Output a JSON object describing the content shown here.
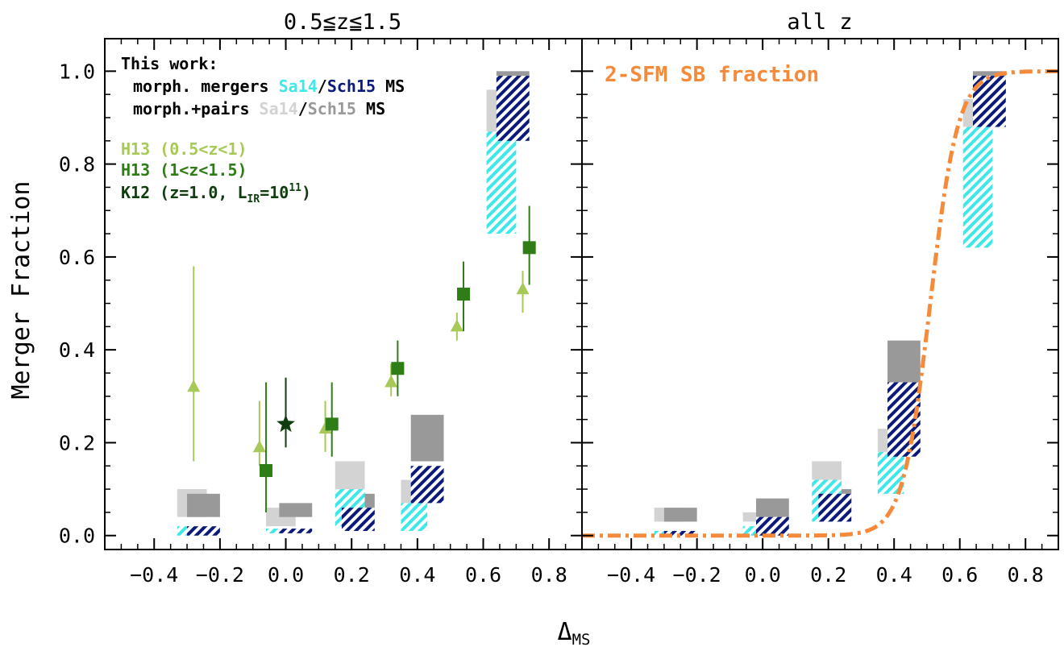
{
  "figure": {
    "ylabel": "Merger Fraction",
    "xlabel_main": "Δ",
    "xlabel_sub": "MS",
    "x_ticks": [
      -0.4,
      -0.2,
      0.0,
      0.2,
      0.4,
      0.6,
      0.8
    ],
    "y_ticks": [
      0.0,
      0.2,
      0.4,
      0.6,
      0.8,
      1.0
    ],
    "colors": {
      "sa14_morph": "#3ee8e8",
      "sch15_morph": "#0b1a78",
      "sa14_pairs": "#d3d3d3",
      "sch15_pairs": "#999999",
      "h13_low": "#a7c957",
      "h13_high": "#2e7d16",
      "k12": "#0f3d0f",
      "sfm_curve": "#f58a3a"
    }
  },
  "legend": {
    "title": "This work:",
    "row1": {
      "prefix": "morph. mergers ",
      "sa14": "Sa14",
      "slash": "/",
      "sch15": "Sch15",
      "suffix": " MS"
    },
    "row2": {
      "prefix": "morph.+pairs ",
      "sa14": "Sa14",
      "slash": "/",
      "sch15": "Sch15",
      "suffix": " MS"
    },
    "h13_low": "H13 (0.5<z<1)",
    "h13_high": "H13 (1<z<1.5)",
    "k12": {
      "text": "K12 (z=1.0, L",
      "sub": "IR",
      "mid": "=10",
      "sup": "11",
      "end": ")"
    },
    "sfm": "2-SFM SB fraction"
  },
  "chart_data": [
    {
      "type": "bar",
      "title": "0.5≦z≦1.5",
      "xlim": [
        -0.55,
        0.9
      ],
      "ylim": [
        -0.03,
        1.07
      ],
      "sa14_pairs": [
        {
          "x0": -0.33,
          "x1": -0.24,
          "y0": 0.04,
          "y1": 0.1
        },
        {
          "x0": -0.06,
          "x1": 0.03,
          "y0": 0.02,
          "y1": 0.06
        },
        {
          "x0": 0.15,
          "x1": 0.24,
          "y0": 0.09,
          "y1": 0.16
        },
        {
          "x0": 0.35,
          "x1": 0.43,
          "y0": 0.06,
          "y1": 0.12
        },
        {
          "x0": 0.61,
          "x1": 0.7,
          "y0": 0.78,
          "y1": 0.96
        }
      ],
      "sch15_pairs": [
        {
          "x0": -0.3,
          "x1": -0.2,
          "y0": 0.04,
          "y1": 0.09
        },
        {
          "x0": -0.02,
          "x1": 0.08,
          "y0": 0.04,
          "y1": 0.07
        },
        {
          "x0": 0.17,
          "x1": 0.27,
          "y0": 0.04,
          "y1": 0.09
        },
        {
          "x0": 0.38,
          "x1": 0.48,
          "y0": 0.16,
          "y1": 0.26
        },
        {
          "x0": 0.64,
          "x1": 0.74,
          "y0": 0.91,
          "y1": 1.0
        }
      ],
      "sa14_morph": [
        {
          "x0": -0.33,
          "x1": -0.24,
          "y0": 0.0,
          "y1": 0.02
        },
        {
          "x0": -0.06,
          "x1": 0.03,
          "y0": 0.005,
          "y1": 0.015
        },
        {
          "x0": 0.15,
          "x1": 0.24,
          "y0": 0.02,
          "y1": 0.1
        },
        {
          "x0": 0.35,
          "x1": 0.43,
          "y0": 0.01,
          "y1": 0.07
        },
        {
          "x0": 0.61,
          "x1": 0.7,
          "y0": 0.65,
          "y1": 0.87
        }
      ],
      "sch15_morph": [
        {
          "x0": -0.3,
          "x1": -0.2,
          "y0": 0.0,
          "y1": 0.02
        },
        {
          "x0": -0.02,
          "x1": 0.08,
          "y0": 0.005,
          "y1": 0.015
        },
        {
          "x0": 0.17,
          "x1": 0.27,
          "y0": 0.01,
          "y1": 0.06
        },
        {
          "x0": 0.38,
          "x1": 0.48,
          "y0": 0.07,
          "y1": 0.15
        },
        {
          "x0": 0.64,
          "x1": 0.74,
          "y0": 0.85,
          "y1": 0.99
        }
      ],
      "h13_low": [
        {
          "x": -0.28,
          "y": 0.32,
          "ylo": 0.16,
          "yhi": 0.58
        },
        {
          "x": -0.08,
          "y": 0.19,
          "ylo": 0.15,
          "yhi": 0.29
        },
        {
          "x": 0.12,
          "y": 0.23,
          "ylo": 0.18,
          "yhi": 0.29
        },
        {
          "x": 0.32,
          "y": 0.33,
          "ylo": 0.3,
          "yhi": 0.37
        },
        {
          "x": 0.52,
          "y": 0.45,
          "ylo": 0.42,
          "yhi": 0.48
        },
        {
          "x": 0.72,
          "y": 0.53,
          "ylo": 0.48,
          "yhi": 0.57
        }
      ],
      "h13_high": [
        {
          "x": -0.06,
          "y": 0.14,
          "ylo": 0.05,
          "yhi": 0.33
        },
        {
          "x": 0.14,
          "y": 0.24,
          "ylo": 0.17,
          "yhi": 0.33
        },
        {
          "x": 0.34,
          "y": 0.36,
          "ylo": 0.3,
          "yhi": 0.42
        },
        {
          "x": 0.54,
          "y": 0.52,
          "ylo": 0.44,
          "yhi": 0.59
        },
        {
          "x": 0.74,
          "y": 0.62,
          "ylo": 0.54,
          "yhi": 0.71
        }
      ],
      "k12": [
        {
          "x": 0.0,
          "y": 0.24,
          "ylo": 0.19,
          "yhi": 0.34
        }
      ]
    },
    {
      "type": "bar",
      "title": "all z",
      "xlim": [
        -0.55,
        0.9
      ],
      "ylim": [
        -0.03,
        1.07
      ],
      "sa14_pairs": [
        {
          "x0": -0.33,
          "x1": -0.24,
          "y0": 0.03,
          "y1": 0.06
        },
        {
          "x0": -0.06,
          "x1": 0.03,
          "y0": 0.03,
          "y1": 0.05
        },
        {
          "x0": 0.15,
          "x1": 0.24,
          "y0": 0.08,
          "y1": 0.16
        },
        {
          "x0": 0.35,
          "x1": 0.43,
          "y0": 0.15,
          "y1": 0.23
        },
        {
          "x0": 0.61,
          "x1": 0.7,
          "y0": 0.73,
          "y1": 0.94
        }
      ],
      "sch15_pairs": [
        {
          "x0": -0.3,
          "x1": -0.2,
          "y0": 0.03,
          "y1": 0.06
        },
        {
          "x0": -0.02,
          "x1": 0.08,
          "y0": 0.04,
          "y1": 0.08
        },
        {
          "x0": 0.17,
          "x1": 0.27,
          "y0": 0.06,
          "y1": 0.1
        },
        {
          "x0": 0.38,
          "x1": 0.48,
          "y0": 0.27,
          "y1": 0.42
        },
        {
          "x0": 0.64,
          "x1": 0.74,
          "y0": 0.94,
          "y1": 1.0
        }
      ],
      "sa14_morph": [
        {
          "x0": -0.33,
          "x1": -0.24,
          "y0": 0.0,
          "y1": 0.01
        },
        {
          "x0": -0.06,
          "x1": 0.03,
          "y0": 0.0,
          "y1": 0.02
        },
        {
          "x0": 0.15,
          "x1": 0.24,
          "y0": 0.03,
          "y1": 0.12
        },
        {
          "x0": 0.35,
          "x1": 0.43,
          "y0": 0.09,
          "y1": 0.18
        },
        {
          "x0": 0.61,
          "x1": 0.7,
          "y0": 0.62,
          "y1": 0.88
        }
      ],
      "sch15_morph": [
        {
          "x0": -0.3,
          "x1": -0.2,
          "y0": 0.0,
          "y1": 0.01
        },
        {
          "x0": -0.02,
          "x1": 0.08,
          "y0": 0.0,
          "y1": 0.04
        },
        {
          "x0": 0.17,
          "x1": 0.27,
          "y0": 0.03,
          "y1": 0.09
        },
        {
          "x0": 0.38,
          "x1": 0.48,
          "y0": 0.17,
          "y1": 0.33
        },
        {
          "x0": 0.64,
          "x1": 0.74,
          "y0": 0.88,
          "y1": 0.99
        }
      ],
      "sfm_curve": {
        "x0": -0.55,
        "x1": 0.9,
        "center": 0.51,
        "width": 0.042,
        "ymax": 1.0
      },
      "sfm_label": "2-SFM SB fraction"
    }
  ]
}
